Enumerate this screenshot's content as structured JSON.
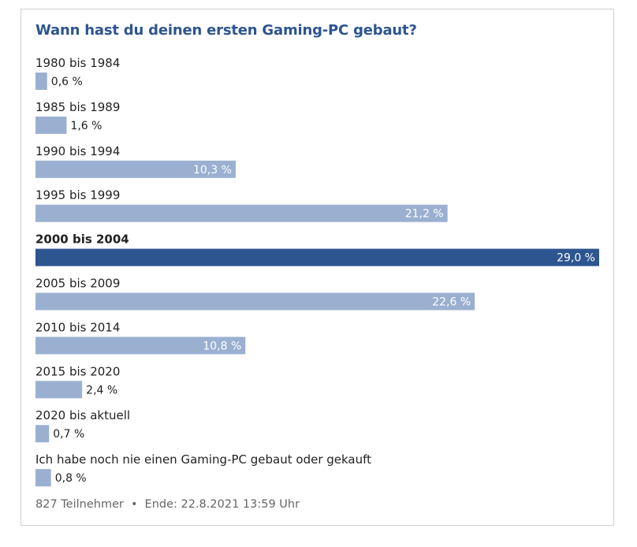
{
  "poll": {
    "title": "Wann hast du deinen ersten Gaming-PC gebaut?",
    "participants": "827 Teilnehmer",
    "separator": "•",
    "end": "Ende: 22.8.2021 13:59 Uhr"
  },
  "colors": {
    "bar": "#9bb0d1",
    "bar_highlight": "#2d5590",
    "label": "#222222",
    "title": "#2d5590"
  },
  "chart_data": {
    "type": "bar",
    "orientation": "horizontal",
    "title": "Wann hast du deinen ersten Gaming-PC gebaut?",
    "unit": "%",
    "highlight": "2000 bis 2004",
    "categories": [
      "1980 bis 1984",
      "1985 bis 1989",
      "1990 bis 1994",
      "1995 bis 1999",
      "2000 bis 2004",
      "2005 bis 2009",
      "2010 bis 2014",
      "2015 bis 2020",
      "2020 bis aktuell",
      "Ich habe noch nie einen Gaming-PC gebaut oder gekauft"
    ],
    "values": [
      0.6,
      1.6,
      10.3,
      21.2,
      29.0,
      22.6,
      10.8,
      2.4,
      0.7,
      0.8
    ],
    "value_labels": [
      "0,6 %",
      "1,6 %",
      "10,3 %",
      "21,2 %",
      "29,0 %",
      "22,6 %",
      "10,8 %",
      "2,4 %",
      "0,7 %",
      "0,8 %"
    ],
    "xlim": [
      0,
      29.0
    ]
  }
}
